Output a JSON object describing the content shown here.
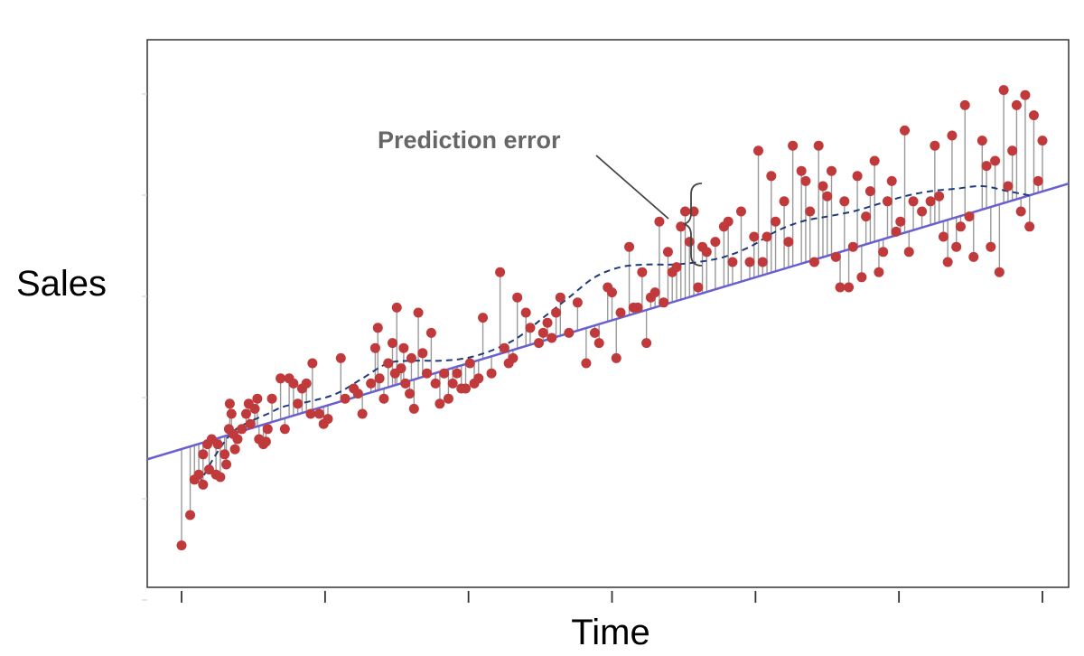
{
  "chart_data": {
    "type": "scatter",
    "title": "",
    "xlabel": "Time",
    "ylabel": "Sales",
    "xlim": [
      0,
      100
    ],
    "ylim": [
      0,
      100
    ],
    "x_ticks": [
      0,
      16.67,
      33.33,
      50,
      66.67,
      83.33,
      100
    ],
    "y_ticks_unlabeled": 6,
    "grid": false,
    "legend": "none",
    "annotation": "Prediction error",
    "colors": {
      "points": "#c0393b",
      "residuals": "#9a9a9a",
      "linear_fit": "#6a5fd0",
      "smooth_fit": "#1f3b7a",
      "annotation": "#666666",
      "frame": "#333333"
    },
    "linear_fit": {
      "x": [
        -4,
        106
      ],
      "y": [
        21,
        77
      ]
    },
    "smooth_fit": {
      "x": [
        2,
        4,
        6,
        8,
        10,
        12,
        15,
        18,
        21,
        24,
        27,
        30,
        33,
        36,
        39,
        42,
        45,
        48,
        51,
        54,
        57,
        60,
        63,
        66,
        69,
        72,
        75,
        78,
        81,
        84,
        87,
        90,
        93,
        96,
        99
      ],
      "y": [
        16,
        22,
        26.5,
        28.5,
        30,
        31.5,
        32.5,
        34,
        37,
        40,
        40.5,
        40.5,
        41,
        42.5,
        45,
        49,
        53,
        57,
        59,
        59.5,
        59.5,
        60,
        61,
        63,
        66,
        68,
        69,
        70,
        71.5,
        73,
        74,
        74.5,
        75,
        74,
        73
      ]
    },
    "points": [
      {
        "x": 0,
        "y": 4
      },
      {
        "x": 1,
        "y": 10
      },
      {
        "x": 1.5,
        "y": 17
      },
      {
        "x": 2,
        "y": 18
      },
      {
        "x": 2.5,
        "y": 22
      },
      {
        "x": 2.5,
        "y": 16
      },
      {
        "x": 3,
        "y": 24
      },
      {
        "x": 3.2,
        "y": 19
      },
      {
        "x": 3.5,
        "y": 25
      },
      {
        "x": 4,
        "y": 18
      },
      {
        "x": 4.2,
        "y": 24
      },
      {
        "x": 4.5,
        "y": 17.5
      },
      {
        "x": 5,
        "y": 22
      },
      {
        "x": 5.2,
        "y": 20
      },
      {
        "x": 5.5,
        "y": 27
      },
      {
        "x": 5.6,
        "y": 32
      },
      {
        "x": 5.8,
        "y": 30
      },
      {
        "x": 6,
        "y": 26
      },
      {
        "x": 6.2,
        "y": 23
      },
      {
        "x": 6.5,
        "y": 25
      },
      {
        "x": 7,
        "y": 27
      },
      {
        "x": 7.5,
        "y": 30
      },
      {
        "x": 7.8,
        "y": 32
      },
      {
        "x": 8,
        "y": 28
      },
      {
        "x": 8.5,
        "y": 31
      },
      {
        "x": 8.8,
        "y": 33
      },
      {
        "x": 9,
        "y": 25
      },
      {
        "x": 9.5,
        "y": 24
      },
      {
        "x": 9.8,
        "y": 24.5
      },
      {
        "x": 10,
        "y": 27
      },
      {
        "x": 10.5,
        "y": 33
      },
      {
        "x": 11.5,
        "y": 37
      },
      {
        "x": 12,
        "y": 27
      },
      {
        "x": 12.5,
        "y": 37
      },
      {
        "x": 13,
        "y": 36
      },
      {
        "x": 13.5,
        "y": 32
      },
      {
        "x": 14,
        "y": 35
      },
      {
        "x": 14.5,
        "y": 36
      },
      {
        "x": 15,
        "y": 30
      },
      {
        "x": 15.2,
        "y": 40
      },
      {
        "x": 16,
        "y": 30
      },
      {
        "x": 16.5,
        "y": 28
      },
      {
        "x": 17,
        "y": 29
      },
      {
        "x": 18.5,
        "y": 41
      },
      {
        "x": 19,
        "y": 33
      },
      {
        "x": 20,
        "y": 35
      },
      {
        "x": 20.5,
        "y": 34
      },
      {
        "x": 21,
        "y": 30
      },
      {
        "x": 22,
        "y": 36
      },
      {
        "x": 22.5,
        "y": 43
      },
      {
        "x": 22.8,
        "y": 47
      },
      {
        "x": 23,
        "y": 37
      },
      {
        "x": 23.5,
        "y": 33
      },
      {
        "x": 24,
        "y": 40
      },
      {
        "x": 24.5,
        "y": 44
      },
      {
        "x": 24.8,
        "y": 38
      },
      {
        "x": 25,
        "y": 51
      },
      {
        "x": 25.5,
        "y": 39
      },
      {
        "x": 25.8,
        "y": 43
      },
      {
        "x": 26,
        "y": 36
      },
      {
        "x": 26.5,
        "y": 34
      },
      {
        "x": 26.7,
        "y": 41
      },
      {
        "x": 27,
        "y": 31
      },
      {
        "x": 27.5,
        "y": 50
      },
      {
        "x": 28,
        "y": 42
      },
      {
        "x": 28.5,
        "y": 38
      },
      {
        "x": 29,
        "y": 46
      },
      {
        "x": 29.5,
        "y": 36
      },
      {
        "x": 30,
        "y": 32
      },
      {
        "x": 30.5,
        "y": 38
      },
      {
        "x": 31,
        "y": 33
      },
      {
        "x": 31.5,
        "y": 36
      },
      {
        "x": 32,
        "y": 38
      },
      {
        "x": 32.5,
        "y": 35
      },
      {
        "x": 33,
        "y": 35
      },
      {
        "x": 33.5,
        "y": 40
      },
      {
        "x": 34,
        "y": 36
      },
      {
        "x": 34.5,
        "y": 37
      },
      {
        "x": 35,
        "y": 49
      },
      {
        "x": 36,
        "y": 38
      },
      {
        "x": 37,
        "y": 58
      },
      {
        "x": 37.5,
        "y": 43
      },
      {
        "x": 38,
        "y": 40
      },
      {
        "x": 38.5,
        "y": 41
      },
      {
        "x": 39,
        "y": 53
      },
      {
        "x": 40,
        "y": 50
      },
      {
        "x": 40.5,
        "y": 47
      },
      {
        "x": 41.5,
        "y": 44
      },
      {
        "x": 42,
        "y": 46
      },
      {
        "x": 42.5,
        "y": 48
      },
      {
        "x": 43,
        "y": 45
      },
      {
        "x": 43.5,
        "y": 50
      },
      {
        "x": 44,
        "y": 53
      },
      {
        "x": 45,
        "y": 46
      },
      {
        "x": 46,
        "y": 52
      },
      {
        "x": 47,
        "y": 40
      },
      {
        "x": 48,
        "y": 46
      },
      {
        "x": 48.5,
        "y": 44
      },
      {
        "x": 49.5,
        "y": 55
      },
      {
        "x": 50,
        "y": 54
      },
      {
        "x": 50.5,
        "y": 41
      },
      {
        "x": 51,
        "y": 50
      },
      {
        "x": 52,
        "y": 63
      },
      {
        "x": 52.5,
        "y": 51
      },
      {
        "x": 53,
        "y": 51
      },
      {
        "x": 53.5,
        "y": 58
      },
      {
        "x": 54,
        "y": 44
      },
      {
        "x": 54.5,
        "y": 53
      },
      {
        "x": 55,
        "y": 54
      },
      {
        "x": 55.5,
        "y": 68
      },
      {
        "x": 56,
        "y": 52
      },
      {
        "x": 56.5,
        "y": 62
      },
      {
        "x": 57,
        "y": 58
      },
      {
        "x": 57.5,
        "y": 59
      },
      {
        "x": 58,
        "y": 67
      },
      {
        "x": 58.5,
        "y": 70
      },
      {
        "x": 59,
        "y": 64
      },
      {
        "x": 59.5,
        "y": 70
      },
      {
        "x": 60,
        "y": 55
      },
      {
        "x": 60.5,
        "y": 63
      },
      {
        "x": 61,
        "y": 62
      },
      {
        "x": 62,
        "y": 64
      },
      {
        "x": 63,
        "y": 67
      },
      {
        "x": 63.5,
        "y": 68
      },
      {
        "x": 64,
        "y": 60
      },
      {
        "x": 65,
        "y": 70
      },
      {
        "x": 66,
        "y": 60
      },
      {
        "x": 66.5,
        "y": 65
      },
      {
        "x": 67,
        "y": 82
      },
      {
        "x": 67.5,
        "y": 60
      },
      {
        "x": 68,
        "y": 65
      },
      {
        "x": 68.5,
        "y": 77
      },
      {
        "x": 69,
        "y": 68
      },
      {
        "x": 70,
        "y": 72
      },
      {
        "x": 70.5,
        "y": 64
      },
      {
        "x": 71,
        "y": 83
      },
      {
        "x": 72,
        "y": 78
      },
      {
        "x": 72.5,
        "y": 76
      },
      {
        "x": 73,
        "y": 70
      },
      {
        "x": 73.5,
        "y": 60
      },
      {
        "x": 74,
        "y": 83
      },
      {
        "x": 74.5,
        "y": 75
      },
      {
        "x": 75,
        "y": 73
      },
      {
        "x": 75.5,
        "y": 78
      },
      {
        "x": 76,
        "y": 61
      },
      {
        "x": 76.5,
        "y": 55
      },
      {
        "x": 77,
        "y": 72
      },
      {
        "x": 77.5,
        "y": 55
      },
      {
        "x": 78,
        "y": 63
      },
      {
        "x": 78.5,
        "y": 77
      },
      {
        "x": 79,
        "y": 57
      },
      {
        "x": 79.5,
        "y": 69
      },
      {
        "x": 80,
        "y": 74
      },
      {
        "x": 80.5,
        "y": 80
      },
      {
        "x": 81,
        "y": 58
      },
      {
        "x": 81.5,
        "y": 62
      },
      {
        "x": 82,
        "y": 72
      },
      {
        "x": 82.5,
        "y": 76
      },
      {
        "x": 83,
        "y": 66
      },
      {
        "x": 83.5,
        "y": 68
      },
      {
        "x": 84,
        "y": 86
      },
      {
        "x": 84.5,
        "y": 62
      },
      {
        "x": 85,
        "y": 72
      },
      {
        "x": 86,
        "y": 70
      },
      {
        "x": 87,
        "y": 72
      },
      {
        "x": 87.5,
        "y": 83
      },
      {
        "x": 88,
        "y": 73
      },
      {
        "x": 88.5,
        "y": 65
      },
      {
        "x": 89,
        "y": 60
      },
      {
        "x": 89.5,
        "y": 85
      },
      {
        "x": 90,
        "y": 63
      },
      {
        "x": 90.5,
        "y": 67
      },
      {
        "x": 91,
        "y": 91
      },
      {
        "x": 91.5,
        "y": 69
      },
      {
        "x": 92,
        "y": 61
      },
      {
        "x": 93,
        "y": 84
      },
      {
        "x": 93.5,
        "y": 79
      },
      {
        "x": 94,
        "y": 63
      },
      {
        "x": 94.5,
        "y": 80
      },
      {
        "x": 95,
        "y": 58
      },
      {
        "x": 95.5,
        "y": 94
      },
      {
        "x": 96,
        "y": 75
      },
      {
        "x": 96.5,
        "y": 82
      },
      {
        "x": 97,
        "y": 91
      },
      {
        "x": 97.5,
        "y": 70
      },
      {
        "x": 98,
        "y": 93
      },
      {
        "x": 98.5,
        "y": 67
      },
      {
        "x": 99,
        "y": 89
      },
      {
        "x": 99.5,
        "y": 76
      },
      {
        "x": 100,
        "y": 84
      }
    ]
  }
}
